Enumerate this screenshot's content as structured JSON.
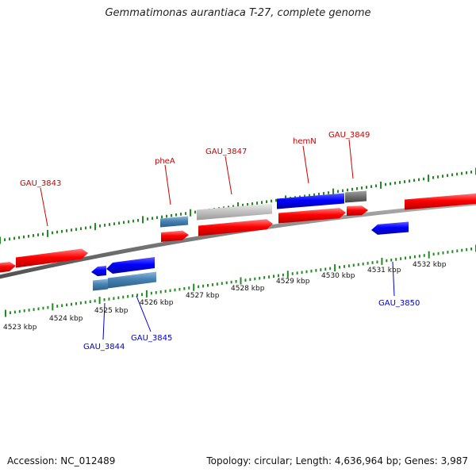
{
  "title": "Gemmatimonas aurantiaca T-27, complete genome",
  "footer": {
    "accession": "Accession: NC_012489",
    "summary": "Topology: circular; Length: 4,636,964 bp; Genes: 3,987"
  },
  "colors": {
    "forward_gene": "#ff0000",
    "reverse_gene": "#0000ff",
    "steel_gene": "#4682b4",
    "gray_gene": "#c0c0c0",
    "dark_gray_gene": "#6f6f6f",
    "forward_label": "#cc0000",
    "reverse_label": "#0000cc",
    "tick": "#228b22",
    "backbone": "#808080"
  },
  "kbp_labels": [
    "4523 kbp",
    "4524 kbp",
    "4525 kbp",
    "4526 kbp",
    "4527 kbp",
    "4528 kbp",
    "4529 kbp",
    "4530 kbp",
    "4531 kbp",
    "4532 kbp"
  ],
  "forward_labels": [
    "GAU_3843",
    "pheA",
    "GAU_3847",
    "hemN",
    "GAU_3849"
  ],
  "reverse_labels": [
    "GAU_3844",
    "GAU_3845",
    "GAU_3850"
  ]
}
